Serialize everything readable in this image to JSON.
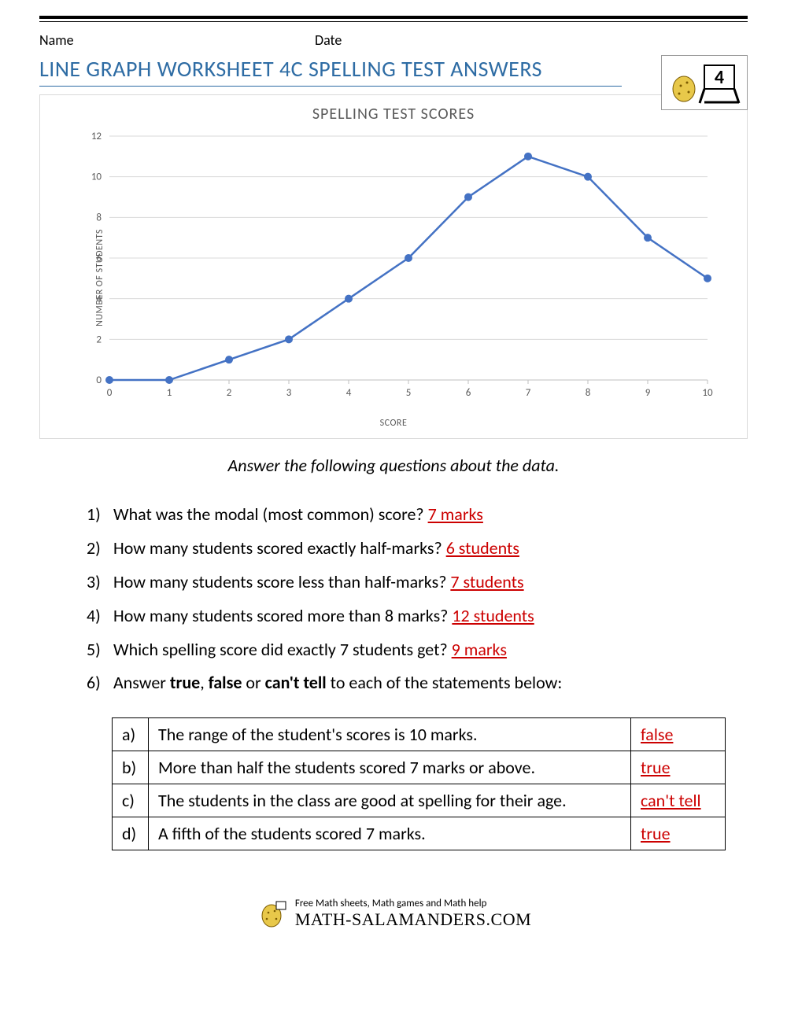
{
  "header": {
    "name_label": "Name",
    "date_label": "Date",
    "logo_number": "4"
  },
  "title": "LINE GRAPH WORKSHEET 4C SPELLING TEST ANSWERS",
  "chart": {
    "type": "line",
    "title": "SPELLING TEST SCORES",
    "xlabel": "SCORE",
    "ylabel": "NUMBER OF STUDENTS",
    "x_values": [
      0,
      1,
      2,
      3,
      4,
      5,
      6,
      7,
      8,
      9,
      10
    ],
    "y_values": [
      0,
      0,
      1,
      2,
      4,
      6,
      9,
      11,
      10,
      7,
      5
    ],
    "xlim": [
      0,
      10
    ],
    "ylim": [
      0,
      12
    ],
    "ytick_step": 2,
    "xtick_step": 1,
    "line_color": "#4472c4",
    "marker_color": "#4472c4",
    "marker_radius": 5,
    "grid_color": "#d9d9d9",
    "axis_color": "#bfbfbf",
    "text_color": "#595959",
    "background": "#ffffff",
    "title_fontsize": 20,
    "label_fontsize": 12,
    "tick_fontsize": 13
  },
  "instruction": "Answer the following questions about the data.",
  "questions": [
    {
      "n": "1)",
      "q": "What was the modal (most common) score? ",
      "a": "7 marks"
    },
    {
      "n": "2)",
      "q": "How many students scored exactly half-marks? ",
      "a": "6 students"
    },
    {
      "n": "3)",
      "q": "How many students score less than half-marks? ",
      "a": "7 students"
    },
    {
      "n": "4)",
      "q": "How many students scored more than 8 marks? ",
      "a": "12 students"
    },
    {
      "n": "5)",
      "q": "Which spelling score did exactly 7 students get? ",
      "a": "9 marks"
    }
  ],
  "q6": {
    "n": "6)",
    "prefix": "Answer ",
    "b1": "true",
    "sep1": ", ",
    "b2": "false",
    "sep2": " or ",
    "b3": "can't tell",
    "suffix": " to each of the statements below:"
  },
  "tf_rows": [
    {
      "lab": "a)",
      "stmt": "The range of the student's scores is 10 marks.",
      "ans": "false"
    },
    {
      "lab": "b)",
      "stmt": "More than half the students scored 7 marks or above.",
      "ans": "true"
    },
    {
      "lab": "c)",
      "stmt": "The students in the class are good at spelling for their age.",
      "ans": "can't tell"
    },
    {
      "lab": "d)",
      "stmt": "A fifth of the students scored 7 marks.",
      "ans": "true"
    }
  ],
  "footer": {
    "small": "Free Math sheets, Math games and Math help",
    "big": "MATH-SALAMANDERS.COM"
  }
}
